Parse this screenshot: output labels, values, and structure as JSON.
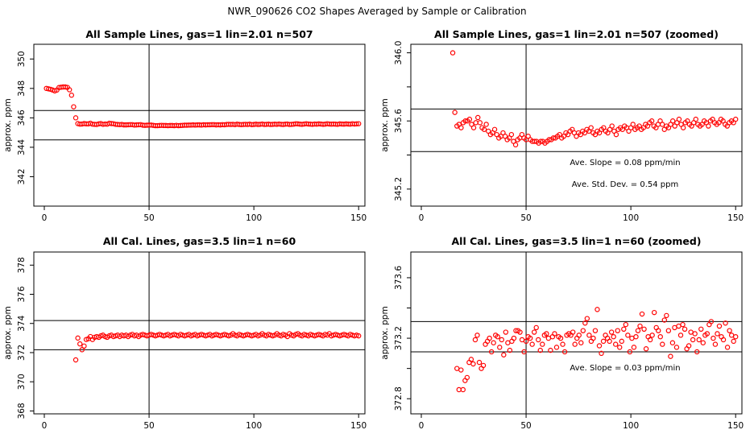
{
  "page_title": "NWR_090626  CO2 Shapes Averaged by Sample or Calibration",
  "colors": {
    "points": "#ff0000",
    "axes": "#000000",
    "background": "#ffffff"
  },
  "chart_data": [
    {
      "type": "scatter",
      "title": "All Sample Lines, gas=1 lin=2.01 n=507",
      "ylabel": "approx. ppm",
      "xlim": [
        -5,
        153
      ],
      "ylim": [
        340,
        351
      ],
      "xticks": [
        0,
        50,
        100,
        150
      ],
      "yticks": [
        342,
        344,
        346,
        348,
        350
      ],
      "ref_lines": {
        "vertical": [
          50
        ],
        "horizontal": [
          344.5,
          346.5
        ]
      },
      "annotations": [],
      "series": [
        {
          "x_start": 1,
          "x_end": 150,
          "values": [
            348.0,
            347.97,
            347.94,
            347.89,
            347.83,
            347.89,
            348.06,
            348.08,
            348.1,
            348.1,
            348.07,
            347.91,
            347.54,
            346.75,
            346.0,
            345.61,
            345.57,
            345.58,
            345.61,
            345.59,
            345.59,
            345.63,
            345.57,
            345.56,
            345.55,
            345.59,
            345.61,
            345.56,
            345.58,
            345.57,
            345.63,
            345.61,
            345.6,
            345.56,
            345.55,
            345.54,
            345.55,
            345.52,
            345.52,
            345.53,
            345.54,
            345.54,
            345.51,
            345.52,
            345.53,
            345.54,
            345.5,
            345.49,
            345.5,
            345.51,
            345.51,
            345.49,
            345.47,
            345.47,
            345.48,
            345.49,
            345.48,
            345.48,
            345.47,
            345.48,
            345.48,
            345.47,
            345.49,
            345.47,
            345.48,
            345.49,
            345.5,
            345.5,
            345.51,
            345.51,
            345.52,
            345.51,
            345.52,
            345.52,
            345.51,
            345.53,
            345.52,
            345.53,
            345.53,
            345.54,
            345.54,
            345.52,
            345.53,
            345.52,
            345.54,
            345.53,
            345.55,
            345.56,
            345.55,
            345.56,
            345.54,
            345.57,
            345.55,
            345.54,
            345.55,
            345.56,
            345.55,
            345.57,
            345.54,
            345.55,
            345.57,
            345.55,
            345.56,
            345.58,
            345.55,
            345.56,
            345.57,
            345.55,
            345.56,
            345.57,
            345.56,
            345.58,
            345.56,
            345.55,
            345.57,
            345.58,
            345.55,
            345.56,
            345.57,
            345.6,
            345.59,
            345.57,
            345.56,
            345.58,
            345.6,
            345.58,
            345.57,
            345.56,
            345.58,
            345.57,
            345.59,
            345.58,
            345.56,
            345.57,
            345.6,
            345.58,
            345.57,
            345.58,
            345.57,
            345.56,
            345.59,
            345.58,
            345.57,
            345.59,
            345.58,
            345.57,
            345.6,
            345.58,
            345.59,
            345.6
          ]
        }
      ]
    },
    {
      "type": "scatter",
      "title": "All Sample Lines, gas=1 lin=2.01 n=507 (zoomed)",
      "ylabel": "approx. ppm",
      "xlim": [
        -5,
        153
      ],
      "ylim": [
        345.1,
        346.05
      ],
      "xticks": [
        0,
        50,
        100,
        150
      ],
      "yticks": [
        345.2,
        345.4,
        345.6,
        345.8,
        346.0
      ],
      "ytick_labels": [
        "345.2",
        "",
        "345.6",
        "",
        "346.0"
      ],
      "ref_lines": {
        "vertical": [
          50
        ],
        "horizontal": [
          345.42,
          345.67
        ]
      },
      "annotations": [
        "Ave. Slope =  0.08  ppm/min",
        "Ave. Std. Dev. =  0.54  ppm"
      ],
      "series": [
        {
          "x_start": 15,
          "x_end": 150,
          "values": [
            346.0,
            345.65,
            345.57,
            345.58,
            345.56,
            345.59,
            345.6,
            345.6,
            345.61,
            345.58,
            345.56,
            345.59,
            345.62,
            345.59,
            345.56,
            345.55,
            345.58,
            345.54,
            345.52,
            345.53,
            345.55,
            345.52,
            345.5,
            345.51,
            345.53,
            345.51,
            345.49,
            345.5,
            345.52,
            345.48,
            345.46,
            345.49,
            345.5,
            345.52,
            345.5,
            345.49,
            345.51,
            345.49,
            345.48,
            345.48,
            345.48,
            345.47,
            345.48,
            345.48,
            345.47,
            345.48,
            345.49,
            345.49,
            345.5,
            345.5,
            345.51,
            345.52,
            345.5,
            345.51,
            345.53,
            345.52,
            345.54,
            345.55,
            345.53,
            345.51,
            345.53,
            345.52,
            345.54,
            345.53,
            345.55,
            345.54,
            345.56,
            345.53,
            345.52,
            345.54,
            345.53,
            345.55,
            345.56,
            345.54,
            345.53,
            345.55,
            345.57,
            345.54,
            345.52,
            345.55,
            345.56,
            345.55,
            345.57,
            345.56,
            345.54,
            345.56,
            345.58,
            345.55,
            345.56,
            345.57,
            345.55,
            345.56,
            345.58,
            345.57,
            345.59,
            345.6,
            345.57,
            345.56,
            345.58,
            345.6,
            345.58,
            345.55,
            345.57,
            345.56,
            345.58,
            345.6,
            345.57,
            345.59,
            345.61,
            345.58,
            345.56,
            345.59,
            345.6,
            345.58,
            345.57,
            345.59,
            345.61,
            345.58,
            345.57,
            345.58,
            345.6,
            345.59,
            345.57,
            345.6,
            345.61,
            345.59,
            345.58,
            345.59,
            345.61,
            345.6,
            345.58,
            345.57,
            345.59,
            345.6,
            345.59,
            345.61
          ]
        }
      ]
    },
    {
      "type": "scatter",
      "title": "All Cal. Lines, gas=3.5 lin=1 n=60",
      "ylabel": "approx. ppm",
      "xlim": [
        -5,
        153
      ],
      "ylim": [
        367.8,
        378.9
      ],
      "xticks": [
        0,
        50,
        100,
        150
      ],
      "yticks": [
        368,
        370,
        372,
        374,
        376,
        378
      ],
      "ref_lines": {
        "vertical": [
          50
        ],
        "horizontal": [
          372.2,
          374.2
        ]
      },
      "annotations": [],
      "series": [
        {
          "x_start": 15,
          "x_end": 150,
          "values": [
            371.5,
            373.0,
            372.6,
            372.2,
            372.45,
            372.9,
            372.95,
            373.1,
            372.9,
            373.05,
            373.1,
            373.05,
            373.15,
            373.2,
            373.1,
            373.05,
            373.15,
            373.2,
            373.1,
            373.15,
            373.2,
            373.1,
            373.2,
            373.15,
            373.2,
            373.1,
            373.2,
            373.25,
            373.15,
            373.2,
            373.1,
            373.2,
            373.25,
            373.2,
            373.15,
            373.2,
            373.25,
            373.2,
            373.15,
            373.2,
            373.25,
            373.2,
            373.15,
            373.2,
            373.25,
            373.15,
            373.2,
            373.25,
            373.2,
            373.15,
            373.25,
            373.2,
            373.15,
            373.2,
            373.25,
            373.15,
            373.2,
            373.25,
            373.15,
            373.2,
            373.25,
            373.2,
            373.15,
            373.2,
            373.25,
            373.15,
            373.2,
            373.25,
            373.2,
            373.15,
            373.2,
            373.25,
            373.2,
            373.15,
            373.2,
            373.3,
            373.2,
            373.15,
            373.25,
            373.2,
            373.15,
            373.2,
            373.25,
            373.2,
            373.15,
            373.2,
            373.25,
            373.15,
            373.2,
            373.3,
            373.2,
            373.15,
            373.25,
            373.2,
            373.15,
            373.2,
            373.3,
            373.2,
            373.15,
            373.25,
            373.2,
            373.1,
            373.3,
            373.2,
            373.15,
            373.25,
            373.3,
            373.2,
            373.15,
            373.25,
            373.2,
            373.15,
            373.25,
            373.2,
            373.15,
            373.2,
            373.25,
            373.2,
            373.15,
            373.25,
            373.2,
            373.3,
            373.15,
            373.2,
            373.25,
            373.2,
            373.15,
            373.2,
            373.25,
            373.2,
            373.15,
            373.25,
            373.2,
            373.15,
            373.2,
            373.15
          ]
        }
      ]
    },
    {
      "type": "scatter",
      "title": "All Cal. Lines, gas=3.5 lin=1 n=60 (zoomed)",
      "ylabel": "approx. ppm",
      "xlim": [
        -5,
        153
      ],
      "ylim": [
        372.7,
        373.77
      ],
      "xticks": [
        0,
        50,
        100,
        150
      ],
      "yticks": [
        372.8,
        373.0,
        373.2,
        373.4,
        373.6
      ],
      "ytick_labels": [
        "372.8",
        "",
        "373.2",
        "",
        "373.6"
      ],
      "ref_lines": {
        "vertical": [
          50
        ],
        "horizontal": [
          373.11,
          373.31
        ]
      },
      "annotations": [
        "Ave. Slope =  0.03  ppm/min"
      ],
      "series": [
        {
          "x_start": 17,
          "x_end": 150,
          "values": [
            373.0,
            372.86,
            372.99,
            372.86,
            372.92,
            372.94,
            373.04,
            373.06,
            373.03,
            373.19,
            373.22,
            373.04,
            373.0,
            373.02,
            373.16,
            373.18,
            373.2,
            373.11,
            373.17,
            373.22,
            373.21,
            373.14,
            373.19,
            373.09,
            373.24,
            373.17,
            373.12,
            373.18,
            373.2,
            373.25,
            373.25,
            373.24,
            373.19,
            373.11,
            373.18,
            373.21,
            373.2,
            373.16,
            373.24,
            373.27,
            373.19,
            373.12,
            373.16,
            373.22,
            373.23,
            373.2,
            373.12,
            373.21,
            373.23,
            373.14,
            373.21,
            373.2,
            373.16,
            373.11,
            373.22,
            373.23,
            373.22,
            373.24,
            373.16,
            373.2,
            373.22,
            373.17,
            373.25,
            373.3,
            373.33,
            373.22,
            373.18,
            373.2,
            373.25,
            373.39,
            373.15,
            373.1,
            373.18,
            373.22,
            373.2,
            373.18,
            373.24,
            373.21,
            373.16,
            373.25,
            373.14,
            373.18,
            373.26,
            373.29,
            373.22,
            373.11,
            373.2,
            373.14,
            373.21,
            373.25,
            373.28,
            373.36,
            373.26,
            373.13,
            373.21,
            373.19,
            373.22,
            373.37,
            373.27,
            373.25,
            373.21,
            373.16,
            373.32,
            373.35,
            373.25,
            373.08,
            373.17,
            373.27,
            373.14,
            373.28,
            373.22,
            373.29,
            373.26,
            373.13,
            373.15,
            373.24,
            373.19,
            373.23,
            373.11,
            373.19,
            373.26,
            373.17,
            373.22,
            373.23,
            373.29,
            373.31,
            373.2,
            373.16,
            373.23,
            373.28,
            373.21,
            373.19,
            373.3,
            373.14,
            373.25,
            373.22,
            373.18,
            373.21
          ]
        }
      ]
    }
  ]
}
